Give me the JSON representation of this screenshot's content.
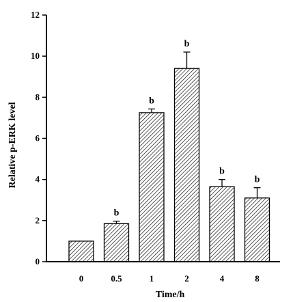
{
  "chart_data": {
    "type": "bar",
    "title": "",
    "xlabel": "Time/h",
    "ylabel": "Relative p-ERK level",
    "categories": [
      "0",
      "0.5",
      "1",
      "2",
      "4",
      "8"
    ],
    "values": [
      1.0,
      1.85,
      7.25,
      9.4,
      3.65,
      3.1
    ],
    "errors": [
      0,
      0.12,
      0.18,
      0.8,
      0.35,
      0.5
    ],
    "annotations": [
      "",
      "b",
      "b",
      "b",
      "b",
      "b"
    ],
    "ylim": [
      0,
      12
    ],
    "yticks": [
      "0",
      "2",
      "4",
      "6",
      "8",
      "10",
      "12"
    ],
    "grid": false,
    "bar_fill": "hatched",
    "colors": {
      "bar_stroke": "#000000",
      "hatch": "#000000",
      "axis": "#000000"
    }
  }
}
